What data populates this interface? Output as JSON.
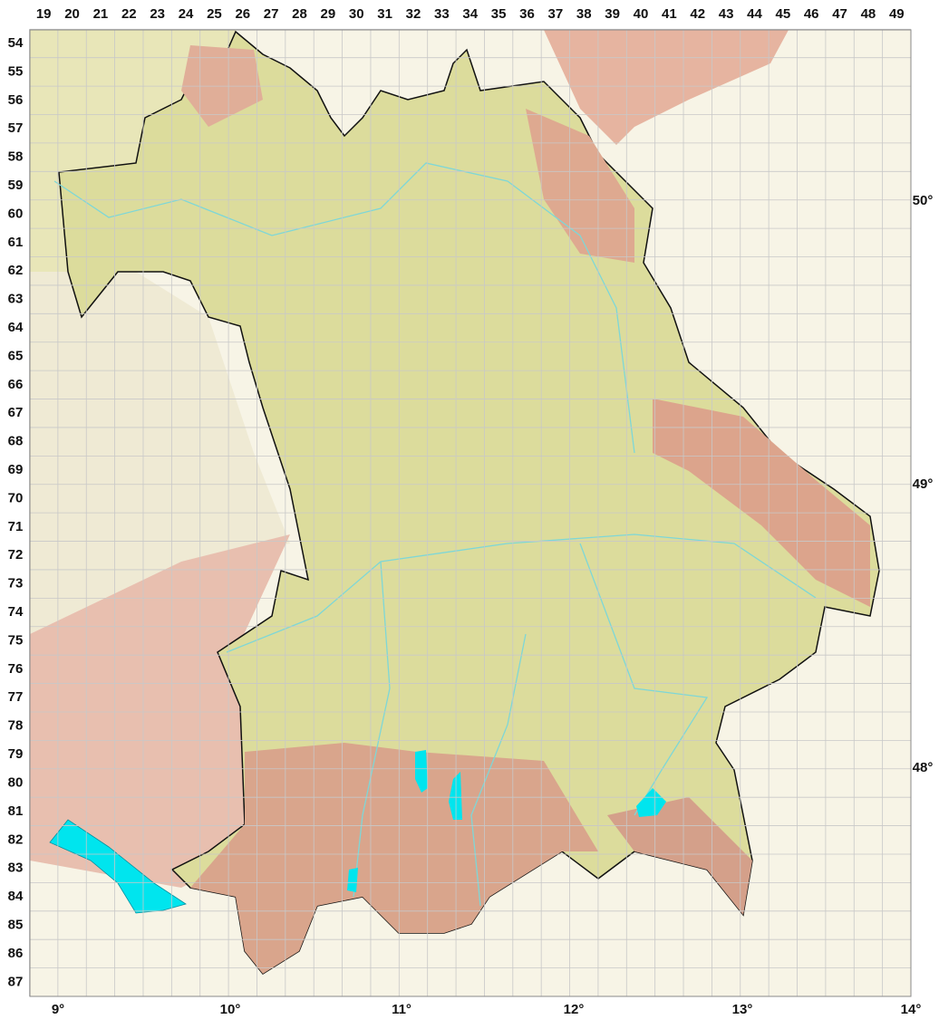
{
  "grid": {
    "columns": [
      "19",
      "20",
      "21",
      "22",
      "23",
      "24",
      "25",
      "26",
      "27",
      "28",
      "29",
      "30",
      "31",
      "32",
      "33",
      "34",
      "35",
      "36",
      "37",
      "38",
      "39",
      "40",
      "41",
      "42",
      "43",
      "44",
      "45",
      "46",
      "47",
      "48",
      "49"
    ],
    "rows": [
      "54",
      "55",
      "56",
      "57",
      "58",
      "59",
      "60",
      "61",
      "62",
      "63",
      "64",
      "65",
      "66",
      "67",
      "68",
      "69",
      "70",
      "71",
      "72",
      "73",
      "74",
      "75",
      "76",
      "77",
      "78",
      "79",
      "80",
      "81",
      "82",
      "83",
      "84",
      "85",
      "86",
      "87"
    ]
  },
  "latitude_labels": [
    "50°",
    "49°",
    "48°"
  ],
  "longitude_labels": [
    "9°",
    "10°",
    "11°",
    "12°",
    "13°",
    "14°"
  ]
}
